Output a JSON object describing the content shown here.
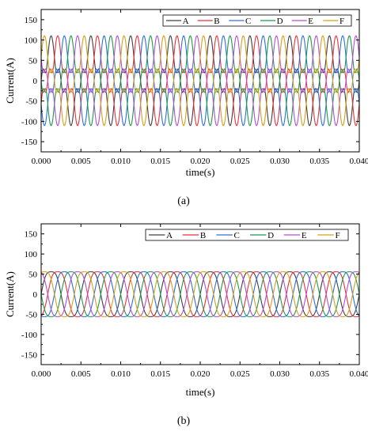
{
  "chart_data": [
    {
      "type": "line",
      "panel_label": "(a)",
      "xlabel": "time(s)",
      "ylabel": "Current(A)",
      "xlim": [
        0,
        0.04
      ],
      "ylim": [
        -175,
        175
      ],
      "x_ticks": [
        "0.000",
        "0.005",
        "0.010",
        "0.015",
        "0.020",
        "0.025",
        "0.030",
        "0.035",
        "0.040"
      ],
      "y_ticks": [
        "150",
        "100",
        "50",
        "0",
        "-50",
        "-100",
        "-150"
      ],
      "grid": false,
      "legend_position": "top-right",
      "waveform": {
        "fundamental_hz": 200,
        "shape": "distorted sinusoid (peaks ~±90 A with harmonic shoulders near ±45 A)",
        "peak_amplitude": 90,
        "phase_shift_deg": 60
      },
      "series": [
        {
          "name": "A",
          "color": "#404040",
          "phase_deg": 0
        },
        {
          "name": "B",
          "color": "#e8323c",
          "phase_deg": 60
        },
        {
          "name": "C",
          "color": "#2f6fde",
          "phase_deg": 120
        },
        {
          "name": "D",
          "color": "#1e9a4b",
          "phase_deg": 180
        },
        {
          "name": "E",
          "color": "#b44fd0",
          "phase_deg": 240
        },
        {
          "name": "F",
          "color": "#d4a017",
          "phase_deg": 300
        }
      ]
    },
    {
      "type": "line",
      "panel_label": "(b)",
      "xlabel": "time(s)",
      "ylabel": "Current(A)",
      "xlim": [
        0,
        0.04
      ],
      "ylim": [
        -175,
        175
      ],
      "x_ticks": [
        "0.000",
        "0.005",
        "0.010",
        "0.015",
        "0.020",
        "0.025",
        "0.030",
        "0.035",
        "0.040"
      ],
      "y_ticks": [
        "150",
        "100",
        "50",
        "0",
        "-50",
        "-100",
        "-150"
      ],
      "grid": false,
      "legend_position": "top-right",
      "waveform": {
        "fundamental_hz": 200,
        "shape": "near-sinusoid with slightly flattened tops",
        "peak_amplitude": 62,
        "phase_shift_deg": 60
      },
      "series": [
        {
          "name": "A",
          "color": "#404040",
          "phase_deg": 0
        },
        {
          "name": "B",
          "color": "#e8323c",
          "phase_deg": 60
        },
        {
          "name": "C",
          "color": "#2f6fde",
          "phase_deg": 120
        },
        {
          "name": "D",
          "color": "#1e9a4b",
          "phase_deg": 180
        },
        {
          "name": "E",
          "color": "#b44fd0",
          "phase_deg": 240
        },
        {
          "name": "F",
          "color": "#d4a017",
          "phase_deg": 300
        }
      ]
    }
  ]
}
